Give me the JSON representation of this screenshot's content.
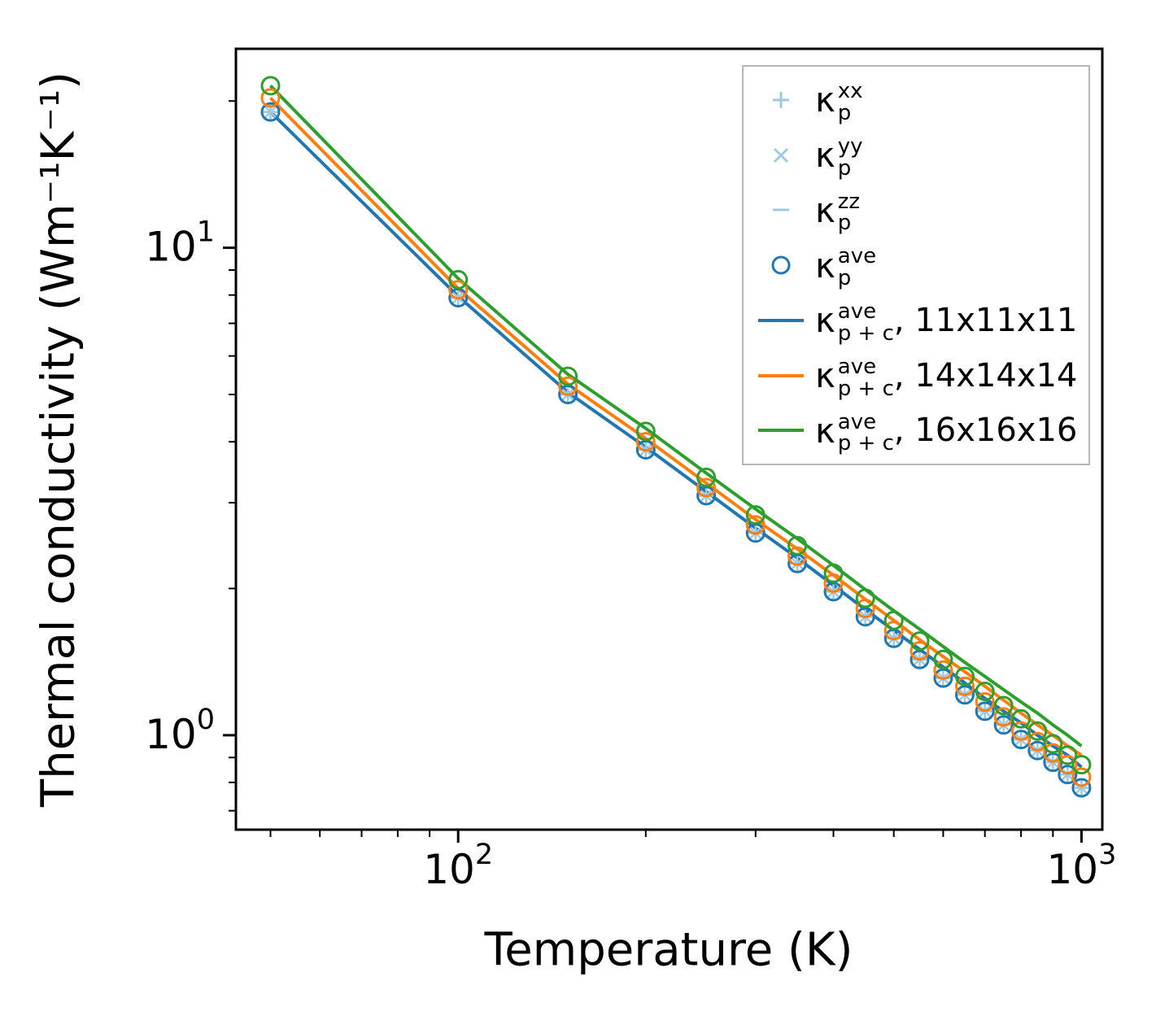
{
  "chart_data": {
    "type": "line",
    "title": "",
    "xlabel": "Temperature (K)",
    "ylabel": "Thermal conductivity (Wm⁻¹K⁻¹)",
    "xscale": "log",
    "yscale": "log",
    "xlim": [
      44,
      1080
    ],
    "ylim": [
      0.64,
      25.6
    ],
    "grid": false,
    "legend_position": "upper right",
    "x_major_ticks": [
      {
        "v": 100,
        "base": "10",
        "exp": "2"
      },
      {
        "v": 1000,
        "base": "10",
        "exp": "3"
      }
    ],
    "x_minor_ticks": [
      50,
      60,
      70,
      80,
      90,
      200,
      300,
      400,
      500,
      600,
      700,
      800,
      900
    ],
    "y_major_ticks": [
      {
        "v": 1,
        "base": "10",
        "exp": "0"
      },
      {
        "v": 10,
        "base": "10",
        "exp": "1"
      }
    ],
    "y_minor_ticks": [
      0.7,
      0.8,
      0.9,
      2,
      3,
      4,
      5,
      6,
      7,
      8,
      9,
      20
    ],
    "x": [
      50,
      100,
      150,
      200,
      250,
      300,
      350,
      400,
      450,
      500,
      550,
      600,
      650,
      700,
      750,
      800,
      850,
      900,
      950,
      1000
    ],
    "scatter_series": [
      {
        "name": "kappa_p_xx",
        "marker": "plus",
        "color": "#9ecae1",
        "values": [
          19.0,
          7.9,
          5.0,
          3.85,
          3.1,
          2.6,
          2.25,
          1.97,
          1.75,
          1.58,
          1.43,
          1.31,
          1.21,
          1.12,
          1.05,
          0.98,
          0.93,
          0.88,
          0.83,
          0.78
        ]
      },
      {
        "name": "kappa_p_yy",
        "marker": "x",
        "color": "#9ecae1",
        "values": [
          19.0,
          7.9,
          5.0,
          3.85,
          3.1,
          2.6,
          2.25,
          1.97,
          1.75,
          1.58,
          1.43,
          1.31,
          1.21,
          1.12,
          1.05,
          0.98,
          0.93,
          0.88,
          0.83,
          0.78
        ]
      },
      {
        "name": "kappa_p_zz",
        "marker": "hline",
        "color": "#9ecae1",
        "values": [
          19.0,
          7.9,
          5.0,
          3.85,
          3.1,
          2.6,
          2.25,
          1.97,
          1.75,
          1.58,
          1.43,
          1.31,
          1.21,
          1.12,
          1.05,
          0.98,
          0.93,
          0.88,
          0.83,
          0.78
        ]
      },
      {
        "name": "kappa_p_ave_11x11x11",
        "marker": "circle",
        "color": "#1f77b4",
        "values": [
          19.0,
          7.9,
          5.0,
          3.85,
          3.1,
          2.6,
          2.25,
          1.97,
          1.75,
          1.58,
          1.43,
          1.31,
          1.21,
          1.12,
          1.05,
          0.98,
          0.93,
          0.88,
          0.83,
          0.78
        ]
      },
      {
        "name": "kappa_p_ave_14x14x14",
        "marker": "circle",
        "color": "#ff7f0e",
        "values": [
          20.3,
          8.2,
          5.2,
          4.0,
          3.22,
          2.7,
          2.33,
          2.05,
          1.82,
          1.64,
          1.49,
          1.36,
          1.26,
          1.17,
          1.09,
          1.02,
          0.97,
          0.92,
          0.87,
          0.82
        ]
      },
      {
        "name": "kappa_p_ave_16x16x16",
        "marker": "circle",
        "color": "#2ca02c",
        "values": [
          21.5,
          8.6,
          5.45,
          4.2,
          3.38,
          2.83,
          2.45,
          2.15,
          1.91,
          1.72,
          1.56,
          1.43,
          1.32,
          1.23,
          1.15,
          1.08,
          1.02,
          0.96,
          0.91,
          0.87
        ]
      }
    ],
    "line_series": [
      {
        "name": "kappa_p+c_ave_11x11x11",
        "color": "#1f77b4",
        "values": [
          19.0,
          7.95,
          5.05,
          3.9,
          3.16,
          2.66,
          2.31,
          2.03,
          1.81,
          1.64,
          1.5,
          1.38,
          1.28,
          1.19,
          1.12,
          1.06,
          1.0,
          0.95,
          0.91,
          0.86
        ]
      },
      {
        "name": "kappa_p+c_ave_14x14x14",
        "color": "#ff7f0e",
        "values": [
          20.3,
          8.25,
          5.25,
          4.06,
          3.29,
          2.77,
          2.41,
          2.13,
          1.9,
          1.72,
          1.57,
          1.45,
          1.35,
          1.26,
          1.18,
          1.11,
          1.05,
          1.0,
          0.95,
          0.91
        ]
      },
      {
        "name": "kappa_p+c_ave_16x16x16",
        "color": "#2ca02c",
        "values": [
          21.5,
          8.65,
          5.5,
          4.26,
          3.45,
          2.91,
          2.53,
          2.23,
          1.99,
          1.8,
          1.65,
          1.52,
          1.41,
          1.32,
          1.24,
          1.17,
          1.11,
          1.05,
          1.0,
          0.95
        ]
      }
    ]
  },
  "axes": {
    "xlabel": "Temperature (K)",
    "ylabel": "Thermal conductivity (Wm⁻¹K⁻¹)"
  },
  "legend": {
    "entries": [
      {
        "marker": "plus",
        "color": "#9ecae1",
        "kappa": "κ",
        "sup": "xx",
        "sub": "p",
        "suffix": ""
      },
      {
        "marker": "x",
        "color": "#9ecae1",
        "kappa": "κ",
        "sup": "yy",
        "sub": "p",
        "suffix": ""
      },
      {
        "marker": "hline",
        "color": "#9ecae1",
        "kappa": "κ",
        "sup": "zz",
        "sub": "p",
        "suffix": ""
      },
      {
        "marker": "circle",
        "color": "#1f77b4",
        "kappa": "κ",
        "sup": "ave",
        "sub": "p",
        "suffix": ""
      },
      {
        "marker": "line",
        "color": "#1f77b4",
        "kappa": "κ",
        "sup": "ave",
        "sub": "p + c",
        "suffix": ", 11x11x11"
      },
      {
        "marker": "line",
        "color": "#ff7f0e",
        "kappa": "κ",
        "sup": "ave",
        "sub": "p + c",
        "suffix": ", 14x14x14"
      },
      {
        "marker": "line",
        "color": "#2ca02c",
        "kappa": "κ",
        "sup": "ave",
        "sub": "p + c",
        "suffix": ", 16x16x16"
      }
    ]
  }
}
